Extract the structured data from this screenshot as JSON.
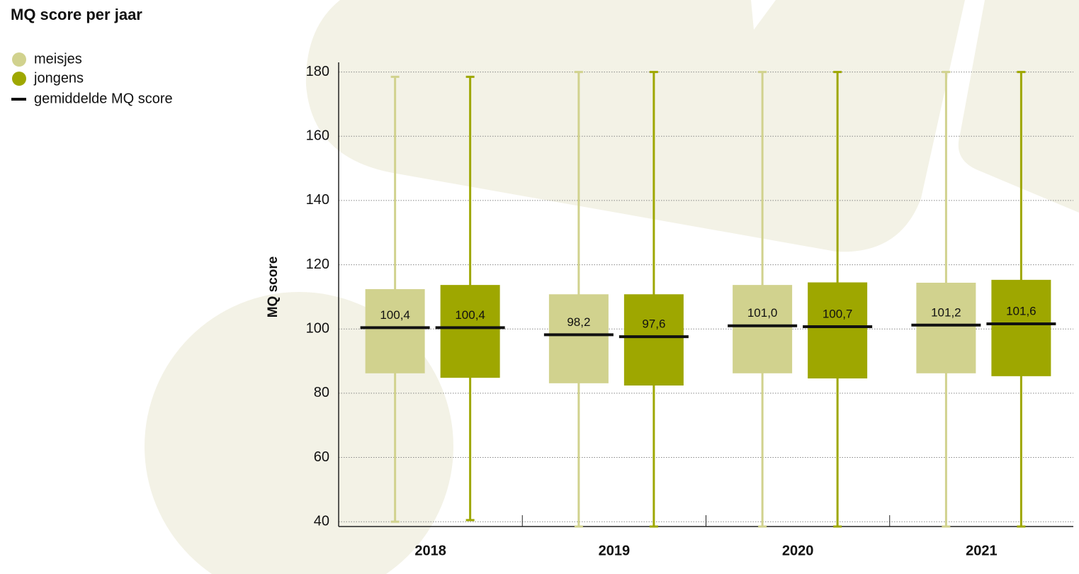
{
  "chart_data": {
    "type": "box",
    "title": "MQ score per jaar",
    "y_label": "MQ score",
    "mean_legend": "gemiddelde MQ score",
    "categories": [
      "2018",
      "2019",
      "2020",
      "2021"
    ],
    "series": [
      {
        "name": "meisjes",
        "color": "#d1d28e",
        "whisker_low": [
          40,
          38.5,
          38.5,
          38.5
        ],
        "q1": [
          86.2,
          83.1,
          86.2,
          86.2
        ],
        "q3": [
          112.4,
          110.8,
          113.7,
          114.4
        ],
        "whisker_high": [
          178.5,
          180,
          180,
          180
        ],
        "mean": [
          100.4,
          98.2,
          101.0,
          101.2
        ],
        "value_labels": [
          "100,4",
          "98,2",
          "101,0",
          "101,2"
        ]
      },
      {
        "name": "jongens",
        "color": "#9ea700",
        "whisker_low": [
          40.5,
          38.5,
          38.5,
          38.5
        ],
        "q1": [
          84.8,
          82.4,
          84.6,
          85.3
        ],
        "q3": [
          113.7,
          110.8,
          114.5,
          115.3
        ],
        "whisker_high": [
          178.5,
          180,
          180,
          180
        ],
        "mean": [
          100.4,
          97.6,
          100.7,
          101.6
        ],
        "value_labels": [
          "100,4",
          "97,6",
          "100,7",
          "101,6"
        ]
      }
    ],
    "mean_color": "#111111",
    "ylim": [
      38.5,
      183
    ],
    "yticks": [
      40,
      60,
      80,
      100,
      120,
      140,
      160,
      180
    ],
    "grid": true
  }
}
